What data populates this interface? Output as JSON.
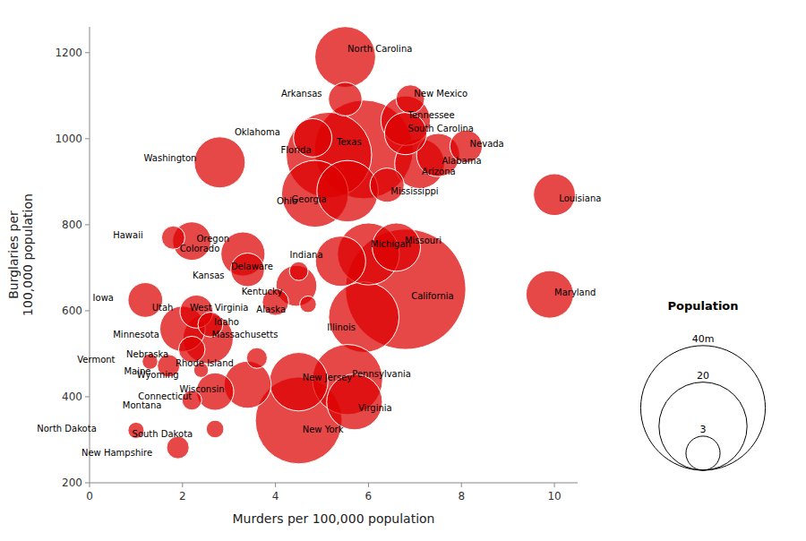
{
  "chart_data": {
    "type": "bubble",
    "xlabel": "Murders per 100,000 population",
    "ylabel": "Burglaries per\n100,000 population",
    "color": "#dd0000",
    "categories": [
      "California",
      "Texas",
      "Florida",
      "New York",
      "Illinois",
      "Pennsylvania",
      "Ohio",
      "Michigan",
      "Georgia",
      "North Carolina",
      "New Jersey",
      "Virginia",
      "Washington",
      "Arizona",
      "Massachusetts",
      "Tennessee",
      "Indiana",
      "Missouri",
      "Maryland",
      "Wisconsin",
      "Minnesota",
      "Colorado",
      "Alabama",
      "South Carolina",
      "Louisiana",
      "Kentucky",
      "Oregon",
      "Oklahoma",
      "Connecticut",
      "Iowa",
      "Mississippi",
      "Arkansas",
      "Kansas",
      "Utah",
      "Nevada",
      "New Mexico",
      "Nebraska",
      "West Virginia",
      "Idaho",
      "Hawaii",
      "Maine",
      "New Hampshire",
      "Rhode Island",
      "Montana",
      "Delaware",
      "South Dakota",
      "Alaska",
      "North Dakota",
      "Vermont",
      "Wyoming"
    ],
    "x": [
      6.8,
      5.9,
      5.15,
      4.5,
      5.9,
      5.55,
      4.85,
      6.0,
      5.55,
      5.5,
      4.5,
      5.7,
      2.8,
      7.1,
      2.55,
      6.8,
      5.4,
      6.6,
      9.9,
      3.4,
      2.0,
      3.3,
      7.5,
      6.8,
      10.0,
      4.45,
      2.2,
      4.8,
      2.7,
      1.2,
      6.4,
      5.5,
      3.4,
      2.3,
      8.1,
      6.9,
      2.2,
      4.0,
      2.6,
      1.8,
      1.7,
      1.9,
      3.6,
      2.2,
      4.5,
      2.7,
      4.7,
      1.0,
      1.3,
      2.4
    ],
    "values": [
      650,
      975,
      962,
      345,
      585,
      440,
      872,
      732,
      878,
      1190,
      435,
      388,
      945,
      942,
      535,
      1042,
      715,
      748,
      638,
      428,
      558,
      732,
      962,
      1012,
      870,
      658,
      762,
      1002,
      412,
      625,
      892,
      1092,
      695,
      598,
      982,
      1092,
      510,
      620,
      568,
      770,
      472,
      282,
      490,
      392,
      692,
      325,
      615,
      322,
      482,
      462
    ],
    "sizes": [
      37.3,
      25.1,
      18.8,
      19.4,
      12.8,
      12.7,
      11.5,
      9.9,
      9.7,
      9.5,
      8.8,
      8.0,
      6.7,
      6.4,
      6.5,
      6.3,
      6.5,
      6.0,
      5.8,
      5.7,
      5.3,
      5.0,
      4.8,
      4.6,
      4.5,
      4.3,
      3.8,
      3.8,
      3.6,
      3.1,
      3.0,
      2.9,
      2.9,
      2.8,
      2.7,
      2.1,
      1.8,
      1.8,
      1.6,
      1.4,
      1.3,
      1.3,
      1.1,
      1.0,
      0.9,
      0.8,
      0.71,
      0.67,
      0.63,
      0.56
    ],
    "xlim": [
      0,
      10.5
    ],
    "ylim": [
      200,
      1260
    ],
    "xticks": [
      0,
      2,
      4,
      6,
      8,
      10
    ],
    "yticks": [
      200,
      400,
      600,
      800,
      1000,
      1200
    ],
    "grid": false,
    "size_legend": {
      "title": "Population",
      "values": [
        40,
        20,
        3
      ],
      "labels": [
        "40m",
        "20",
        "3"
      ]
    }
  }
}
